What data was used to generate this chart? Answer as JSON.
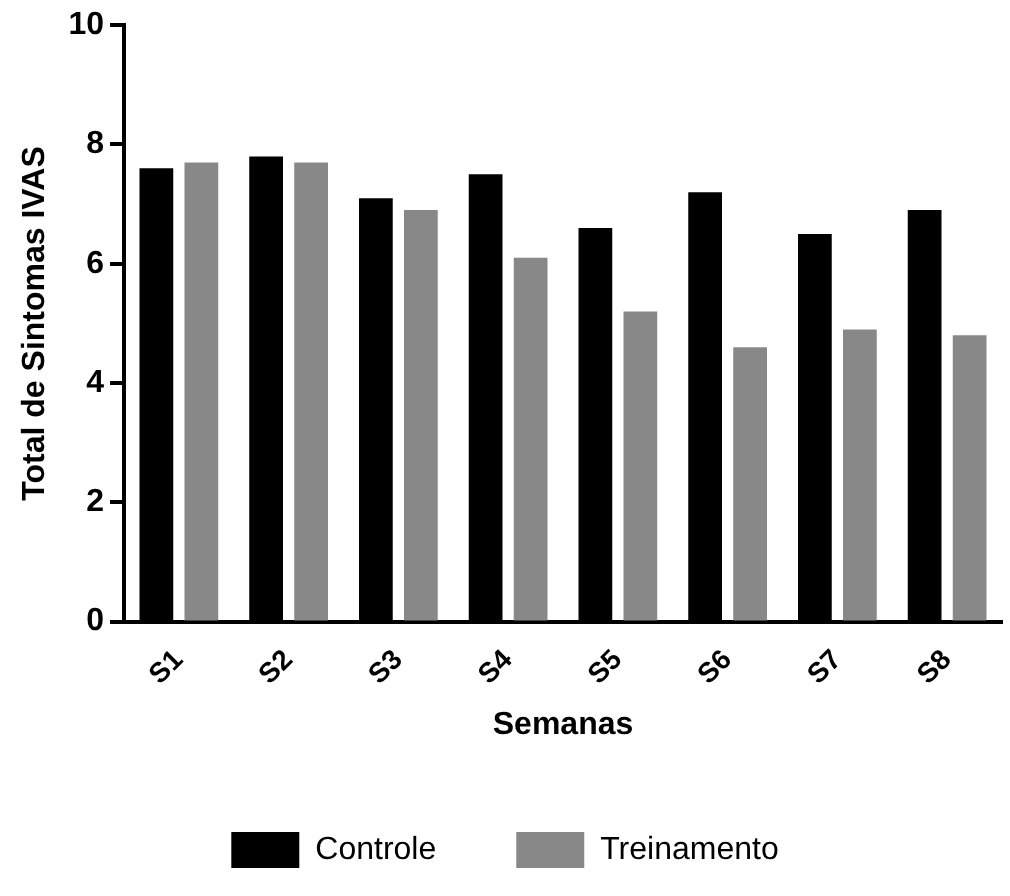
{
  "chart_data": {
    "type": "bar",
    "xlabel": "Semanas",
    "ylabel": "Total de Sintomas IVAS",
    "categories": [
      "S1",
      "S2",
      "S3",
      "S4",
      "S5",
      "S6",
      "S7",
      "S8"
    ],
    "series": [
      {
        "name": "Controle",
        "color": "#000000",
        "values": [
          7.6,
          7.8,
          7.1,
          7.5,
          6.6,
          7.2,
          6.5,
          6.9
        ]
      },
      {
        "name": "Treinamento",
        "color": "#888888",
        "values": [
          7.7,
          7.7,
          6.9,
          6.1,
          5.2,
          4.6,
          4.9,
          4.8
        ]
      }
    ],
    "ylim": [
      0,
      10
    ],
    "yticks": [
      0,
      2,
      4,
      6,
      8,
      10
    ],
    "grid": false,
    "legend": "bottom"
  }
}
